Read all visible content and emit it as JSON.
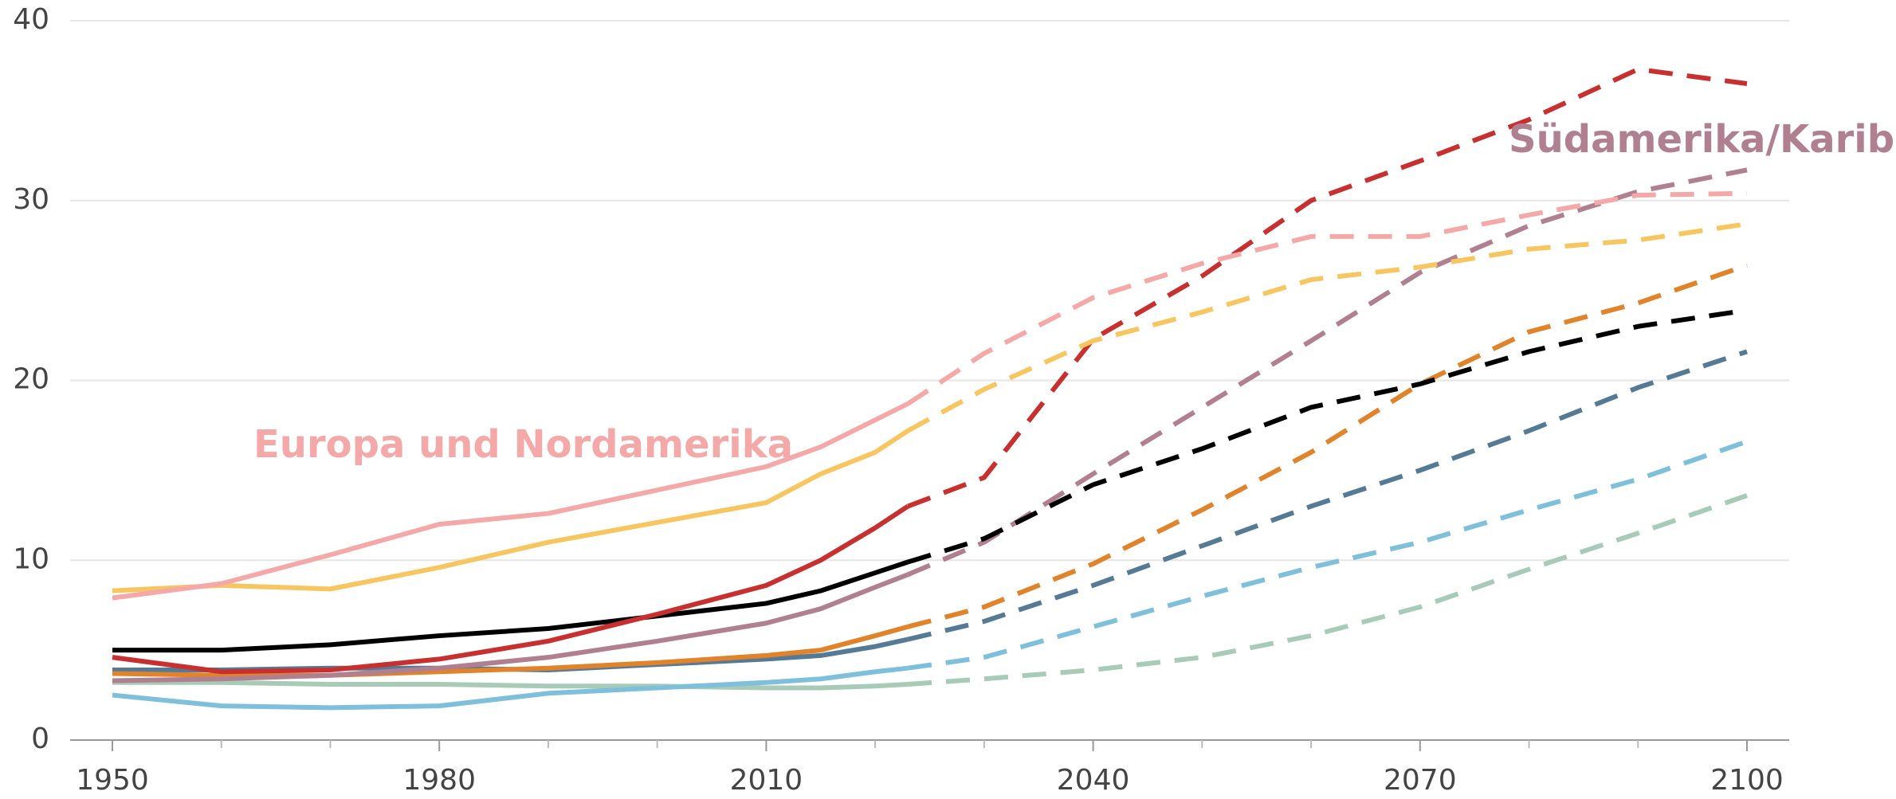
{
  "chart_data": {
    "type": "line",
    "x": [
      1950,
      1960,
      1970,
      1980,
      1990,
      2000,
      2010,
      2015,
      2020,
      2023,
      2030,
      2040,
      2050,
      2060,
      2070,
      2080,
      2090,
      2100
    ],
    "projected_from": 2023,
    "series": [
      {
        "name": "Europa und Nordamerika",
        "color": "#f4a9a8",
        "values": [
          7.9,
          8.7,
          10.3,
          12.0,
          12.6,
          13.9,
          15.2,
          16.3,
          17.8,
          18.7,
          21.5,
          24.6,
          26.5,
          28.0,
          28.0,
          29.2,
          30.3,
          30.4
        ]
      },
      {
        "color": "#f8c660",
        "values": [
          8.3,
          8.6,
          8.4,
          9.6,
          11.0,
          12.1,
          13.2,
          14.8,
          16.0,
          17.2,
          19.5,
          22.2,
          23.8,
          25.6,
          26.3,
          27.3,
          27.8,
          28.7
        ]
      },
      {
        "color": "#c8302f",
        "values": [
          4.6,
          3.8,
          3.9,
          4.5,
          5.5,
          7.0,
          8.6,
          10.0,
          11.8,
          13.0,
          14.6,
          22.3,
          25.8,
          30.0,
          32.2,
          34.5,
          37.3,
          36.5
        ]
      },
      {
        "color": "#000000",
        "values": [
          5.0,
          5.0,
          5.3,
          5.8,
          6.2,
          6.9,
          7.6,
          8.3,
          9.3,
          9.9,
          11.2,
          14.2,
          16.2,
          18.5,
          19.8,
          21.6,
          23.0,
          23.9
        ]
      },
      {
        "name": "Südamerika/Karibik",
        "color": "#b08090",
        "values": [
          3.3,
          3.4,
          3.6,
          4.0,
          4.6,
          5.5,
          6.5,
          7.3,
          8.5,
          9.2,
          11.0,
          14.8,
          18.5,
          22.2,
          26.0,
          28.6,
          30.5,
          31.7
        ]
      },
      {
        "color": "#e0832a",
        "values": [
          3.7,
          3.6,
          3.6,
          3.8,
          4.0,
          4.3,
          4.7,
          5.0,
          5.8,
          6.3,
          7.4,
          9.8,
          12.8,
          16.0,
          19.8,
          22.7,
          24.3,
          26.4
        ]
      },
      {
        "color": "#557a96",
        "values": [
          3.9,
          3.9,
          4.0,
          4.0,
          3.9,
          4.2,
          4.5,
          4.7,
          5.2,
          5.6,
          6.6,
          8.6,
          10.8,
          13.0,
          15.0,
          17.2,
          19.6,
          21.6
        ]
      },
      {
        "color": "#7ec0dc",
        "values": [
          2.5,
          1.9,
          1.8,
          1.9,
          2.6,
          2.9,
          3.2,
          3.4,
          3.8,
          4.0,
          4.6,
          6.3,
          8.0,
          9.6,
          11.0,
          12.8,
          14.5,
          16.6
        ]
      },
      {
        "color": "#a8cbb8",
        "values": [
          3.2,
          3.2,
          3.1,
          3.1,
          3.0,
          3.0,
          2.9,
          2.9,
          3.0,
          3.1,
          3.4,
          3.9,
          4.6,
          5.8,
          7.4,
          9.5,
          11.5,
          13.6
        ]
      }
    ],
    "xlim": [
      1950,
      2100
    ],
    "xticks": [
      1950,
      1980,
      2010,
      2040,
      2070,
      2100
    ],
    "xminor_ticks": [
      1960,
      1970,
      1990,
      2000,
      2020,
      2030,
      2050,
      2060,
      2080,
      2090
    ],
    "ylim": [
      0,
      40
    ],
    "yticks": [
      0,
      10,
      20,
      30,
      40
    ],
    "grid": true
  }
}
